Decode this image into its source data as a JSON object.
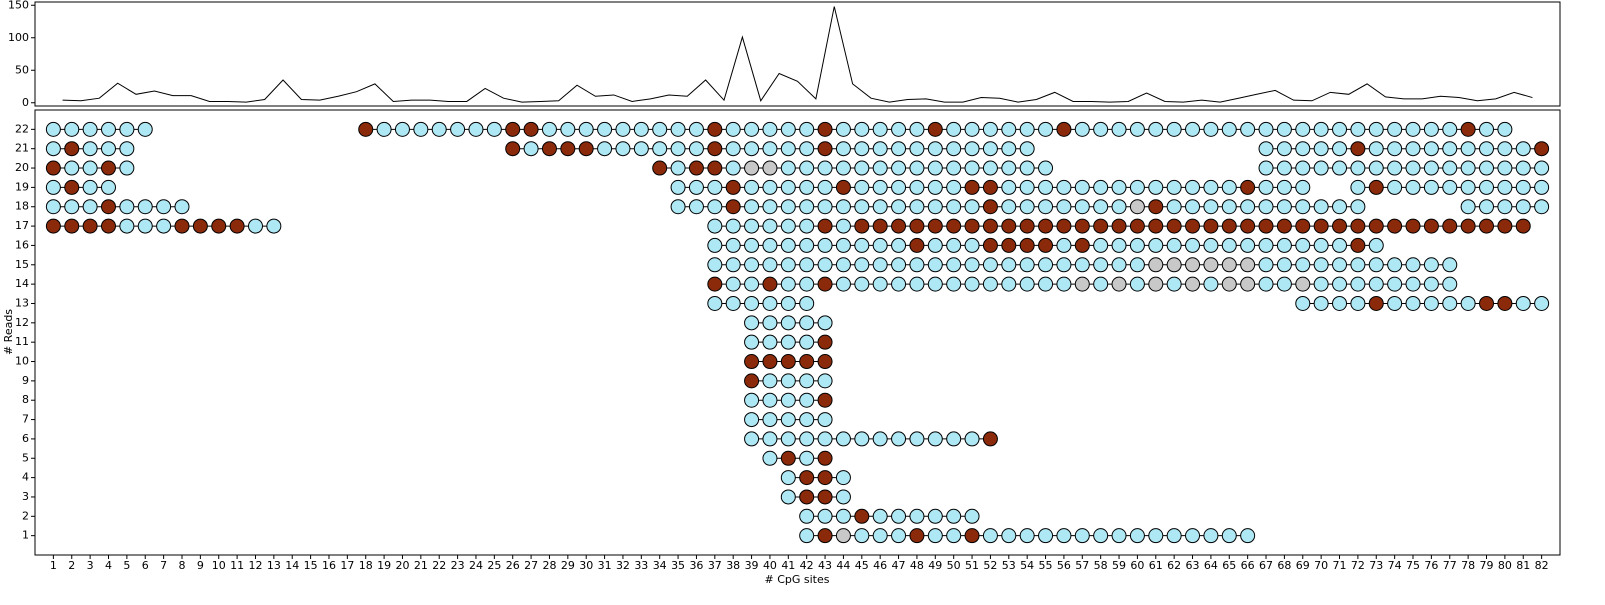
{
  "chart_data": [
    {
      "type": "line",
      "color": "#000000",
      "x": [
        1.5,
        2.5,
        3.5,
        4.5,
        5.5,
        6.5,
        7.5,
        8.5,
        9.5,
        10.5,
        11.5,
        12.5,
        13.5,
        14.5,
        15.5,
        16.5,
        17.5,
        18.5,
        19.5,
        20.5,
        21.5,
        22.5,
        23.5,
        24.5,
        25.5,
        26.5,
        27.5,
        28.5,
        29.5,
        30.5,
        31.5,
        32.5,
        33.5,
        34.5,
        35.5,
        36.5,
        37.5,
        38.5,
        39.5,
        40.5,
        41.5,
        42.5,
        43.5,
        44.5,
        45.5,
        46.5,
        47.5,
        48.5,
        49.5,
        50.5,
        51.5,
        52.5,
        53.5,
        54.5,
        55.5,
        56.5,
        57.5,
        58.5,
        59.5,
        60.5,
        61.5,
        62.5,
        63.5,
        64.5,
        65.5,
        66.5,
        67.5,
        68.5,
        69.5,
        70.5,
        71.5,
        72.5,
        73.5,
        74.5,
        75.5,
        76.5,
        77.5,
        78.5,
        79.5,
        80.5,
        81.5
      ],
      "values": [
        4,
        3,
        7,
        30,
        13,
        18,
        11,
        11,
        2,
        2,
        1,
        5,
        35,
        5,
        4,
        10,
        17,
        29,
        2,
        4,
        4,
        2,
        2,
        22,
        7,
        1,
        2,
        3,
        27,
        10,
        12,
        2,
        6,
        12,
        10,
        35,
        4,
        101,
        3,
        45,
        33,
        6,
        148,
        29,
        7,
        1,
        5,
        6,
        1,
        1,
        8,
        7,
        1,
        5,
        16,
        2,
        2,
        1,
        2,
        15,
        2,
        1,
        4,
        1,
        7,
        13,
        19,
        4,
        3,
        16,
        13,
        29,
        9,
        6,
        6,
        10,
        8,
        3,
        6,
        16,
        8
      ],
      "xlim": [
        0,
        83
      ],
      "ylim": [
        -5,
        155
      ],
      "yticks": [
        0,
        50,
        100,
        150
      ]
    },
    {
      "type": "lollipop",
      "xlabel": "# CpG sites",
      "ylabel": "# Reads",
      "xlim": [
        0,
        83
      ],
      "ylim": [
        0,
        23
      ],
      "xticks": [
        1,
        2,
        3,
        4,
        5,
        6,
        7,
        8,
        9,
        10,
        11,
        12,
        13,
        14,
        15,
        16,
        17,
        18,
        19,
        20,
        21,
        22,
        23,
        24,
        25,
        26,
        27,
        28,
        29,
        30,
        31,
        32,
        33,
        34,
        35,
        36,
        37,
        38,
        39,
        40,
        41,
        42,
        43,
        44,
        45,
        46,
        47,
        48,
        49,
        50,
        51,
        52,
        53,
        54,
        55,
        56,
        57,
        58,
        59,
        60,
        61,
        62,
        63,
        64,
        65,
        66,
        67,
        68,
        69,
        70,
        71,
        72,
        73,
        74,
        75,
        76,
        77,
        78,
        79,
        80,
        81,
        82
      ],
      "yticks": [
        1,
        2,
        3,
        4,
        5,
        6,
        7,
        8,
        9,
        10,
        11,
        12,
        13,
        14,
        15,
        16,
        17,
        18,
        19,
        20,
        21,
        22
      ],
      "state_colors": [
        "#aee8f5",
        "#8b2a0a",
        "#c8c8c8"
      ],
      "line_color": "#000000",
      "reads": [
        {
          "read": 22,
          "segments": [
            {
              "start": 1,
              "states": [
                0,
                0,
                0,
                0,
                0,
                0
              ]
            },
            {
              "start": 18,
              "states": [
                1,
                0,
                0,
                0,
                0,
                0,
                0,
                0,
                1,
                1,
                0,
                0,
                0,
                0,
                0,
                0,
                0,
                0,
                0,
                1,
                0,
                0,
                0,
                0,
                0,
                1,
                0,
                0,
                0,
                0,
                0,
                1,
                0,
                0,
                0,
                0,
                0,
                0,
                1,
                0,
                0,
                0,
                0,
                0,
                0,
                0,
                0,
                0,
                0,
                0,
                0,
                0,
                0,
                0,
                0,
                0,
                0,
                0,
                0,
                0,
                1,
                0,
                0
              ]
            }
          ]
        },
        {
          "read": 21,
          "segments": [
            {
              "start": 1,
              "states": [
                0,
                1,
                0,
                0,
                0
              ]
            },
            {
              "start": 26,
              "states": [
                1,
                0,
                1,
                1,
                1,
                0,
                0,
                0,
                0,
                0,
                0,
                1,
                0,
                0,
                0,
                0,
                0,
                1,
                0,
                0,
                0,
                0,
                0,
                0,
                0,
                0,
                0,
                0,
                0
              ]
            },
            {
              "start": 67,
              "states": [
                0,
                0,
                0,
                0,
                0,
                1,
                0,
                0,
                0,
                0,
                0,
                0,
                0,
                0,
                0,
                1
              ]
            }
          ]
        },
        {
          "read": 20,
          "segments": [
            {
              "start": 1,
              "states": [
                1,
                0,
                0,
                1,
                0
              ]
            },
            {
              "start": 34,
              "states": [
                1,
                0,
                1,
                1,
                0,
                2,
                2,
                0,
                0,
                0,
                0,
                0,
                0,
                0,
                0,
                0,
                0,
                0,
                0,
                0,
                0,
                0
              ]
            },
            {
              "start": 67,
              "states": [
                0,
                0,
                0,
                0,
                0,
                0,
                0,
                0,
                0,
                0,
                0,
                0,
                0,
                0,
                0,
                0
              ]
            }
          ]
        },
        {
          "read": 19,
          "segments": [
            {
              "start": 1,
              "states": [
                0,
                1,
                0,
                0
              ]
            },
            {
              "start": 35,
              "states": [
                0,
                0,
                0,
                1,
                0,
                0,
                0,
                0,
                0,
                1,
                0,
                0,
                0,
                0,
                0,
                0,
                1,
                1,
                0,
                0,
                0,
                0,
                0,
                0,
                0,
                0,
                0,
                0,
                0,
                0,
                0,
                1,
                0,
                0,
                0
              ]
            },
            {
              "start": 72,
              "states": [
                0,
                1,
                0,
                0,
                0,
                0,
                0,
                0,
                0,
                0,
                0
              ]
            }
          ]
        },
        {
          "read": 18,
          "segments": [
            {
              "start": 1,
              "states": [
                0,
                0,
                0,
                1,
                0,
                0,
                0,
                0
              ]
            },
            {
              "start": 35,
              "states": [
                0,
                0,
                0,
                1,
                0,
                0,
                0,
                0,
                0,
                0,
                0,
                0,
                0,
                0,
                0,
                0,
                0,
                1,
                0,
                0,
                0,
                0,
                0,
                0,
                0,
                2,
                1,
                0,
                0,
                0,
                0,
                0,
                0,
                0,
                0,
                0,
                0,
                0
              ]
            },
            {
              "start": 78,
              "states": [
                0,
                0,
                0,
                0,
                0
              ]
            }
          ]
        },
        {
          "read": 17,
          "segments": [
            {
              "start": 1,
              "states": [
                1,
                1,
                1,
                1,
                0,
                0,
                0,
                1,
                1,
                1,
                1,
                0,
                0
              ]
            },
            {
              "start": 37,
              "states": [
                0,
                0,
                0,
                0,
                0,
                0,
                1,
                0,
                1,
                1,
                1,
                1,
                1,
                1,
                1,
                1,
                1,
                1,
                1,
                1,
                1,
                1,
                1,
                1,
                1,
                1,
                1,
                1,
                1,
                1,
                1,
                1,
                1,
                1,
                1,
                1,
                1,
                1,
                1,
                1,
                1,
                1,
                1,
                1,
                1
              ]
            }
          ]
        },
        {
          "read": 16,
          "segments": [
            {
              "start": 37,
              "states": [
                0,
                0,
                0,
                0,
                0,
                0,
                0,
                0,
                0,
                0,
                0,
                1,
                0,
                0,
                0,
                1,
                1,
                1,
                1,
                0,
                1,
                0,
                0,
                0,
                0,
                0,
                0,
                0,
                0,
                0,
                0,
                0,
                0,
                0,
                0,
                1,
                0
              ]
            }
          ]
        },
        {
          "read": 15,
          "segments": [
            {
              "start": 37,
              "states": [
                0,
                0,
                0,
                0,
                0,
                0,
                0,
                0,
                0,
                0,
                0,
                0,
                0,
                0,
                0,
                0,
                0,
                0,
                0,
                0,
                0,
                0,
                0,
                0,
                2,
                2,
                2,
                2,
                2,
                2,
                0,
                0,
                0,
                0,
                0,
                0,
                0,
                0,
                0,
                0,
                0
              ]
            }
          ]
        },
        {
          "read": 14,
          "segments": [
            {
              "start": 37,
              "states": [
                1,
                0,
                0,
                1,
                0,
                0,
                1,
                0,
                0,
                0,
                0,
                0,
                0,
                0,
                0,
                0,
                0,
                0,
                0,
                0,
                2,
                0,
                2,
                0,
                2,
                0,
                2,
                0,
                2,
                2,
                0,
                0,
                2,
                0,
                0,
                0,
                0,
                0,
                0,
                0,
                0
              ]
            }
          ]
        },
        {
          "read": 13,
          "segments": [
            {
              "start": 37,
              "states": [
                0,
                0,
                0,
                0,
                0,
                0
              ]
            },
            {
              "start": 69,
              "states": [
                0,
                0,
                0,
                0,
                1,
                0,
                0,
                0,
                0,
                0,
                1,
                1,
                0,
                0
              ]
            }
          ]
        },
        {
          "read": 12,
          "segments": [
            {
              "start": 39,
              "states": [
                0,
                0,
                0,
                0,
                0
              ]
            }
          ]
        },
        {
          "read": 11,
          "segments": [
            {
              "start": 39,
              "states": [
                0,
                0,
                0,
                0,
                1
              ]
            }
          ]
        },
        {
          "read": 10,
          "segments": [
            {
              "start": 39,
              "states": [
                1,
                1,
                1,
                1,
                1
              ]
            }
          ]
        },
        {
          "read": 9,
          "segments": [
            {
              "start": 39,
              "states": [
                1,
                0,
                0,
                0,
                0
              ]
            }
          ]
        },
        {
          "read": 8,
          "segments": [
            {
              "start": 39,
              "states": [
                0,
                0,
                0,
                0,
                1
              ]
            }
          ]
        },
        {
          "read": 7,
          "segments": [
            {
              "start": 39,
              "states": [
                0,
                0,
                0,
                0,
                0
              ]
            }
          ]
        },
        {
          "read": 6,
          "segments": [
            {
              "start": 39,
              "states": [
                0,
                0,
                0,
                0,
                0,
                0,
                0,
                0,
                0,
                0,
                0,
                0,
                0,
                1
              ]
            }
          ]
        },
        {
          "read": 5,
          "segments": [
            {
              "start": 40,
              "states": [
                0,
                1,
                0,
                1
              ]
            }
          ]
        },
        {
          "read": 4,
          "segments": [
            {
              "start": 41,
              "states": [
                0,
                1,
                1,
                0
              ]
            }
          ]
        },
        {
          "read": 3,
          "segments": [
            {
              "start": 41,
              "states": [
                0,
                1,
                1,
                0
              ]
            }
          ]
        },
        {
          "read": 2,
          "segments": [
            {
              "start": 42,
              "states": [
                0,
                0,
                0,
                1,
                0,
                0,
                0,
                0,
                0,
                0
              ]
            }
          ]
        },
        {
          "read": 1,
          "segments": [
            {
              "start": 42,
              "states": [
                0,
                1,
                2,
                0,
                0,
                0,
                1,
                0,
                0,
                1,
                0,
                0,
                0,
                0,
                0,
                0,
                0,
                0,
                0,
                0,
                0,
                0,
                0,
                0,
                0
              ]
            }
          ]
        }
      ]
    }
  ]
}
